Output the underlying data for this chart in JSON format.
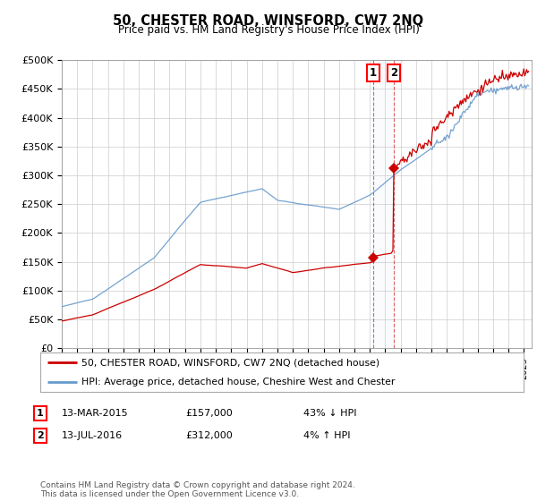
{
  "title": "50, CHESTER ROAD, WINSFORD, CW7 2NQ",
  "subtitle": "Price paid vs. HM Land Registry's House Price Index (HPI)",
  "ylabel_ticks": [
    "£0",
    "£50K",
    "£100K",
    "£150K",
    "£200K",
    "£250K",
    "£300K",
    "£350K",
    "£400K",
    "£450K",
    "£500K"
  ],
  "ytick_values": [
    0,
    50000,
    100000,
    150000,
    200000,
    250000,
    300000,
    350000,
    400000,
    450000,
    500000
  ],
  "ylim": [
    0,
    500000
  ],
  "xlim_start": 1995.0,
  "xlim_end": 2025.5,
  "hpi_color": "#6699cc",
  "price_color": "#cc0000",
  "legend1": "50, CHESTER ROAD, WINSFORD, CW7 2NQ (detached house)",
  "legend2": "HPI: Average price, detached house, Cheshire West and Chester",
  "transaction1_date": 2015.2,
  "transaction1_price": 157000,
  "transaction2_date": 2016.54,
  "transaction2_price": 312000,
  "footer": "Contains HM Land Registry data © Crown copyright and database right 2024.\nThis data is licensed under the Open Government Licence v3.0.",
  "background_color": "#ffffff",
  "grid_color": "#cccccc"
}
